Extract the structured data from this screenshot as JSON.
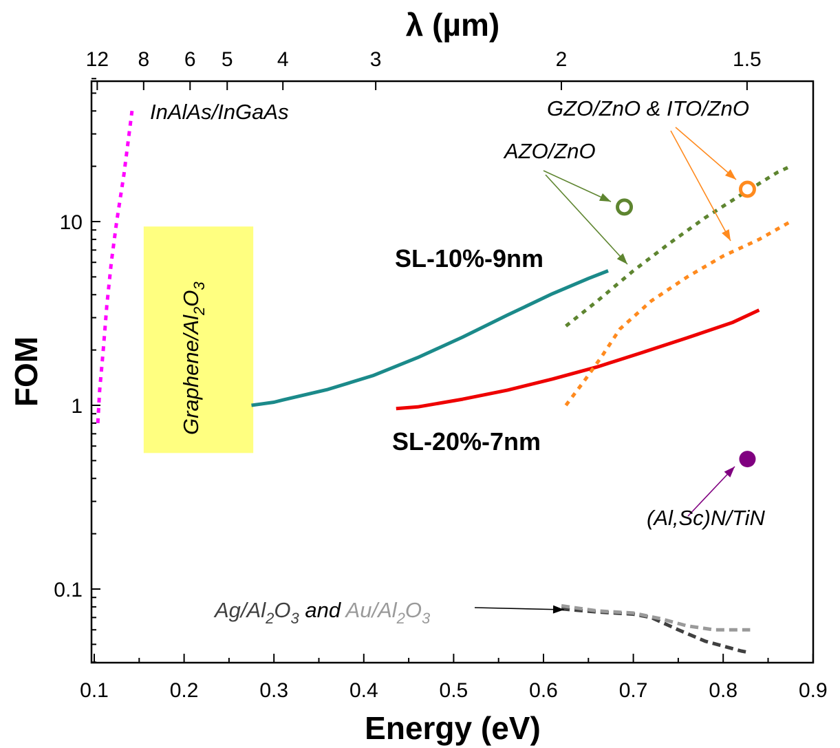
{
  "chart_data": {
    "type": "line",
    "xlabel": "Energy (eV)",
    "ylabel": "FOM",
    "x2label": "λ (µm)",
    "xlim": [
      0.1,
      0.9
    ],
    "ylim": [
      0.04,
      60
    ],
    "yscale": "log",
    "xticks": [
      0.1,
      0.2,
      0.3,
      0.4,
      0.5,
      0.6,
      0.7,
      0.8,
      0.9
    ],
    "xtick_labels": [
      "0.1",
      "0.2",
      "0.3",
      "0.4",
      "0.5",
      "0.6",
      "0.7",
      "0.8",
      "0.9"
    ],
    "yticks": [
      0.1,
      1,
      10
    ],
    "ytick_labels": [
      "0.1",
      "1",
      "10"
    ],
    "top_ticks_um": [
      12,
      8,
      6,
      5,
      4,
      3,
      2,
      1.5
    ],
    "top_tick_labels": [
      "12",
      "8",
      "6",
      "5",
      "4",
      "3",
      "2",
      "1.5"
    ],
    "series": [
      {
        "name": "SL-10%-9nm",
        "style": "solid",
        "color": "#1b8a8a",
        "x": [
          0.275,
          0.3,
          0.31,
          0.36,
          0.41,
          0.46,
          0.51,
          0.56,
          0.61,
          0.65,
          0.672
        ],
        "y": [
          1.0,
          1.04,
          1.07,
          1.22,
          1.45,
          1.82,
          2.35,
          3.1,
          4.05,
          4.9,
          5.4
        ]
      },
      {
        "name": "SL-20%-7nm",
        "style": "solid",
        "color": "#ee0000",
        "x": [
          0.436,
          0.46,
          0.51,
          0.56,
          0.61,
          0.66,
          0.71,
          0.76,
          0.81,
          0.84
        ],
        "y": [
          0.96,
          0.98,
          1.08,
          1.21,
          1.39,
          1.62,
          1.94,
          2.33,
          2.82,
          3.3
        ]
      },
      {
        "name": "InAlAs/InGaAs",
        "style": "dotted",
        "color": "#ff00ff",
        "x": [
          0.104,
          0.106,
          0.11,
          0.114,
          0.119,
          0.125,
          0.133,
          0.142
        ],
        "y": [
          0.8,
          1.2,
          2.0,
          3.5,
          6.0,
          10.0,
          18.0,
          40.0
        ]
      },
      {
        "name": "AZO/ZnO",
        "style": "dotted",
        "color": "#5e8530",
        "x": [
          0.625,
          0.66,
          0.7,
          0.74,
          0.78,
          0.82,
          0.86,
          0.875
        ],
        "y": [
          2.7,
          3.7,
          5.4,
          7.6,
          10.5,
          14.0,
          18.5,
          20.0
        ]
      },
      {
        "name": "GZO/ZnO & ITO/ZnO",
        "style": "dotted",
        "color": "#ff8a1e",
        "x": [
          0.625,
          0.645,
          0.665,
          0.685,
          0.72,
          0.76,
          0.8,
          0.84,
          0.875
        ],
        "y": [
          1.0,
          1.35,
          1.85,
          2.6,
          3.7,
          5.0,
          6.5,
          8.0,
          10.0
        ]
      },
      {
        "name": "Ag/Al2O3",
        "style": "dashed",
        "color": "#404040",
        "x": [
          0.62,
          0.66,
          0.7,
          0.72,
          0.75,
          0.78,
          0.82,
          0.83
        ],
        "y": [
          0.078,
          0.075,
          0.073,
          0.07,
          0.06,
          0.052,
          0.046,
          0.045
        ]
      },
      {
        "name": "Au/Al2O3",
        "style": "dashed",
        "color": "#9a9a9a",
        "x": [
          0.62,
          0.66,
          0.7,
          0.73,
          0.76,
          0.79,
          0.83
        ],
        "y": [
          0.081,
          0.076,
          0.074,
          0.069,
          0.063,
          0.06,
          0.06
        ]
      }
    ],
    "points": [
      {
        "label": "AZO/ZnO",
        "x": 0.69,
        "y": 12.0,
        "marker": "open-circle",
        "color": "#5e8530"
      },
      {
        "label": "GZO/ZnO & ITO/ZnO",
        "x": 0.827,
        "y": 15.0,
        "marker": "open-circle",
        "color": "#ff8a1e"
      },
      {
        "label": "(Al,Sc)N/TiN",
        "x": 0.827,
        "y": 0.51,
        "marker": "filled-circle",
        "color": "#800080"
      }
    ],
    "shaded_regions": [
      {
        "label": "Graphene/Al2O3",
        "x": [
          0.155,
          0.277
        ],
        "y": [
          0.55,
          9.4
        ],
        "color": "#ffff80"
      }
    ],
    "annotations": {
      "inalas": "InAlAs/InGaAs",
      "sl10": "SL-10%-9nm",
      "sl20": "SL-20%-7nm",
      "azo": "AZO/ZnO",
      "gzo": "GZO/ZnO & ITO/ZnO",
      "alsc": "(Al,Sc)N/TiN",
      "graphene_main": "Graphene/Al",
      "graphene_sub1": "2",
      "graphene_o": "O",
      "graphene_sub2": "3",
      "ag_main": "Ag/Al",
      "ag_sub1": "2",
      "ag_o": "O",
      "ag_sub2": "3",
      "and_text": " and ",
      "au_main": "Au/Al",
      "au_sub1": "2",
      "au_o": "O",
      "au_sub2": "3"
    },
    "colors": {
      "teal": "#1b8a8a",
      "red": "#ee0000",
      "magenta": "#ff00ff",
      "olive": "#5e8530",
      "orange": "#ff8a1e",
      "purple": "#800080",
      "dark_gray": "#404040",
      "light_gray": "#9a9a9a",
      "graphene_fill": "#ffff80"
    }
  }
}
